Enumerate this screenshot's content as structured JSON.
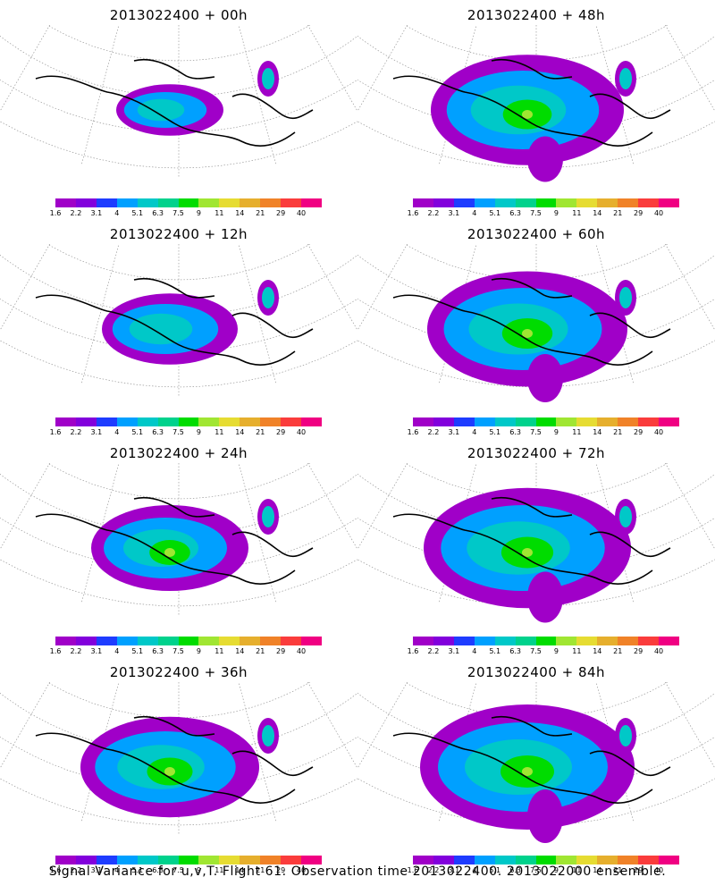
{
  "footer": "Signal Variance for u,v,T. Flight 61. Observation time 2013022400. 2013022000 ensemble.",
  "colorbar": {
    "labels": [
      "1.6",
      "2.2",
      "3.1",
      "4",
      "5.1",
      "6.3",
      "7.5",
      "9",
      "11",
      "14",
      "21",
      "29",
      "40"
    ],
    "colors": [
      "#a000c8",
      "#8200dc",
      "#1e3cff",
      "#00a0ff",
      "#00c8c8",
      "#00d28c",
      "#00dc00",
      "#a0e632",
      "#e6dc32",
      "#e6af2d",
      "#f08228",
      "#fa3c3c",
      "#f00082"
    ]
  },
  "panels": [
    {
      "title": "2013022400 + 00h"
    },
    {
      "title": "2013022400 + 48h"
    },
    {
      "title": "2013022400 + 12h"
    },
    {
      "title": "2013022400 + 60h"
    },
    {
      "title": "2013022400 + 24h"
    },
    {
      "title": "2013022400 + 72h"
    },
    {
      "title": "2013022400 + 36h"
    },
    {
      "title": "2013022400 + 84h"
    }
  ]
}
